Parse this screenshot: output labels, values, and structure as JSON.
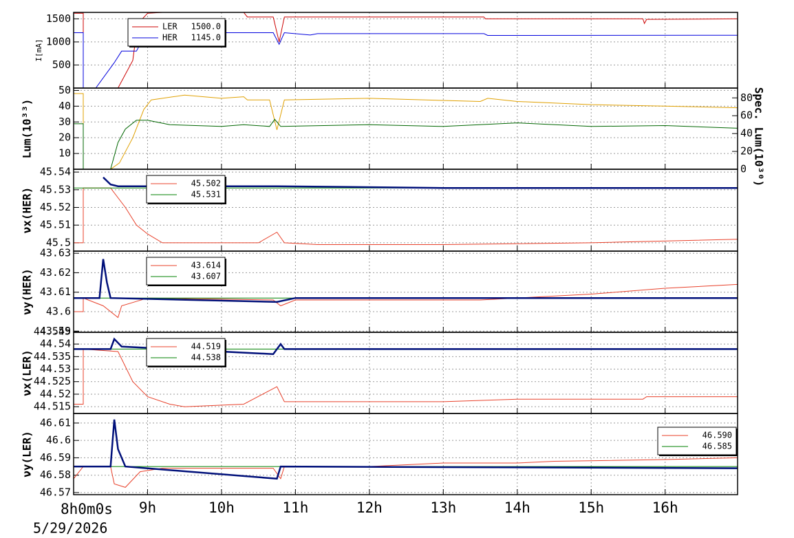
{
  "chart_data": [
    {
      "type": "line",
      "ylabel": "I[mA]",
      "xlim": [
        8,
        16.98
      ],
      "xticks": [
        9,
        10,
        11,
        12,
        13,
        14,
        15,
        16
      ],
      "ylim": [
        0,
        1640
      ],
      "yticks": [
        500,
        1000,
        1500
      ],
      "grid": true,
      "legend": "upper-left",
      "series": [
        {
          "name": "LER",
          "legend_label": "1500.0",
          "color": "#cc0000",
          "x": [
            8.0,
            8.13,
            8.13,
            8.6,
            8.8,
            8.85,
            8.93,
            9.0,
            9.2,
            10.3,
            10.35,
            10.7,
            10.78,
            10.85,
            13.55,
            13.57,
            15.7,
            15.72,
            15.75,
            16.98
          ],
          "values": [
            1620,
            1620,
            0,
            0,
            600,
            1200,
            1500,
            1620,
            1640,
            1640,
            1540,
            1540,
            1000,
            1540,
            1540,
            1500,
            1500,
            1400,
            1490,
            1500
          ]
        },
        {
          "name": "HER",
          "legend_label": "1145.0",
          "color": "#0000dd",
          "x": [
            8.0,
            8.13,
            8.13,
            8.3,
            8.55,
            8.65,
            8.85,
            8.95,
            9.1,
            10.7,
            10.78,
            10.85,
            11.2,
            11.3,
            13.55,
            13.6,
            16.98
          ],
          "values": [
            1200,
            1200,
            0,
            0,
            550,
            800,
            800,
            1100,
            1200,
            1200,
            950,
            1200,
            1150,
            1180,
            1180,
            1140,
            1145
          ]
        }
      ]
    },
    {
      "type": "line",
      "ylabel": "Lum(10³³)",
      "y2label": "Spec. Lum(10³⁰)",
      "xlim": [
        8,
        16.98
      ],
      "xticks": [
        9,
        10,
        11,
        12,
        13,
        14,
        15,
        16
      ],
      "ylim": [
        0,
        51.5
      ],
      "yticks": [
        10,
        20,
        30,
        40,
        50
      ],
      "y2lim": [
        0,
        91
      ],
      "y2ticks": [
        0,
        20,
        40,
        60,
        80
      ],
      "grid": true,
      "series": [
        {
          "color": "#e0a000",
          "x": [
            8.0,
            8.13,
            8.13,
            8.5,
            8.62,
            8.8,
            8.95,
            9.05,
            9.5,
            10.0,
            10.3,
            10.35,
            10.65,
            10.75,
            10.85,
            12.0,
            13.5,
            13.6,
            14.0,
            15.0,
            16.0,
            16.98
          ],
          "values": [
            48,
            48,
            0,
            0,
            4,
            20,
            38,
            44,
            47,
            45,
            46,
            44,
            44,
            25,
            44,
            45,
            43,
            45,
            43,
            41,
            40,
            39
          ]
        },
        {
          "color": "#006600",
          "axis": "y2",
          "x": [
            8.0,
            8.13,
            8.13,
            8.5,
            8.6,
            8.7,
            8.85,
            9.0,
            9.3,
            10.0,
            10.3,
            10.65,
            10.72,
            10.8,
            12.0,
            13.0,
            14.0,
            15.0,
            16.0,
            16.98
          ],
          "values": [
            51,
            51,
            0,
            0,
            30,
            45,
            55,
            55,
            50,
            48,
            50,
            48,
            56,
            48,
            50,
            48,
            52,
            48,
            49,
            46
          ]
        }
      ]
    },
    {
      "type": "line",
      "ylabel": "νx(HER)",
      "xlim": [
        8,
        16.98
      ],
      "xticks": [
        9,
        10,
        11,
        12,
        13,
        14,
        15,
        16
      ],
      "ylim": [
        45.4953,
        45.5416
      ],
      "yticks": [
        45.5,
        45.51,
        45.52,
        45.53,
        45.54
      ],
      "grid": true,
      "legend": "upper-left",
      "series": [
        {
          "name": "45.502",
          "color": "#e8402a",
          "x": [
            8.0,
            8.13,
            8.13,
            8.5,
            8.7,
            8.85,
            9.0,
            9.2,
            10.5,
            10.75,
            10.85,
            11.3,
            13.0,
            15.0,
            16.98
          ],
          "values": [
            45.5,
            45.5,
            45.531,
            45.531,
            45.52,
            45.51,
            45.505,
            45.5,
            45.5,
            45.506,
            45.5,
            45.499,
            45.499,
            45.5,
            45.502
          ]
        },
        {
          "name": "45.531",
          "color": "#008000",
          "x": [
            8.0,
            16.98
          ],
          "values": [
            45.531,
            45.531
          ]
        },
        {
          "color": "#00107a",
          "x": [
            8.4,
            8.5,
            8.6,
            9.0,
            10.75,
            13.0,
            16.98
          ],
          "values": [
            45.537,
            45.533,
            45.532,
            45.532,
            45.532,
            45.531,
            45.531
          ]
        }
      ]
    },
    {
      "type": "line",
      "ylabel": "νy(HER)",
      "xlim": [
        8,
        16.98
      ],
      "xticks": [
        9,
        10,
        11,
        12,
        13,
        14,
        15,
        16
      ],
      "ylim": [
        43.5894,
        43.6311
      ],
      "yticks": [
        43.59,
        43.6,
        43.61,
        43.62,
        43.63
      ],
      "grid": true,
      "legend": "upper-left",
      "series": [
        {
          "name": "43.614",
          "color": "#e8402a",
          "x": [
            8.0,
            8.13,
            8.13,
            8.4,
            8.6,
            8.65,
            9.0,
            10.7,
            10.8,
            11.0,
            13.5,
            14.0,
            15.0,
            16.0,
            16.98
          ],
          "values": [
            43.6,
            43.6,
            43.607,
            43.603,
            43.597,
            43.603,
            43.607,
            43.606,
            43.603,
            43.606,
            43.606,
            43.607,
            43.609,
            43.612,
            43.614
          ]
        },
        {
          "name": "43.607",
          "color": "#008000",
          "x": [
            8.0,
            16.98
          ],
          "values": [
            43.607,
            43.607
          ]
        },
        {
          "color": "#00107a",
          "x": [
            8.0,
            8.35,
            8.4,
            8.45,
            8.5,
            10.75,
            11.0,
            16.98
          ],
          "values": [
            43.607,
            43.607,
            43.627,
            43.615,
            43.607,
            43.605,
            43.607,
            43.607
          ]
        }
      ]
    },
    {
      "type": "line",
      "ylabel": "νx(LER)",
      "xlim": [
        8,
        16.98
      ],
      "xticks": [
        9,
        10,
        11,
        12,
        13,
        14,
        15,
        16
      ],
      "ylim": [
        44.5123,
        44.5447
      ],
      "yticks": [
        44.515,
        44.52,
        44.525,
        44.53,
        44.535,
        44.54,
        44.545
      ],
      "grid": true,
      "legend": "upper-left",
      "series": [
        {
          "name": "44.519",
          "color": "#e8402a",
          "x": [
            8.0,
            8.13,
            8.13,
            8.6,
            8.8,
            9.0,
            9.3,
            9.5,
            10.3,
            10.75,
            10.85,
            11.2,
            13.0,
            14.0,
            15.7,
            15.75,
            16.98
          ],
          "values": [
            44.516,
            44.516,
            44.538,
            44.537,
            44.525,
            44.519,
            44.516,
            44.515,
            44.516,
            44.523,
            44.517,
            44.517,
            44.517,
            44.518,
            44.518,
            44.519,
            44.519
          ]
        },
        {
          "name": "44.538",
          "color": "#008000",
          "x": [
            8.0,
            16.98
          ],
          "values": [
            44.538,
            44.538
          ]
        },
        {
          "color": "#00107a",
          "x": [
            8.0,
            8.5,
            8.55,
            8.65,
            10.7,
            10.8,
            10.85,
            16.98
          ],
          "values": [
            44.538,
            44.538,
            44.542,
            44.539,
            44.536,
            44.54,
            44.538,
            44.538
          ]
        }
      ]
    },
    {
      "type": "line",
      "ylabel": "νy(LER)",
      "xlim": [
        8,
        16.98
      ],
      "xticks": [
        {
          "value": 9,
          "label": "9h"
        },
        {
          "value": 10,
          "label": "10h"
        },
        {
          "value": 11,
          "label": "11h"
        },
        {
          "value": 12,
          "label": "12h"
        },
        {
          "value": 13,
          "label": "13h"
        },
        {
          "value": 14,
          "label": "14h"
        },
        {
          "value": 15,
          "label": "15h"
        },
        {
          "value": 16,
          "label": "16h"
        }
      ],
      "x_origin_label": "8h0m0s",
      "date_label": "5/29/2026",
      "ylim": [
        46.5688,
        46.6155
      ],
      "yticks": [
        46.57,
        46.58,
        46.59,
        46.6,
        46.61
      ],
      "grid": true,
      "legend": "upper-right",
      "series": [
        {
          "name": "46.590",
          "color": "#e8402a",
          "x": [
            8.0,
            8.13,
            8.5,
            8.55,
            8.7,
            8.9,
            9.2,
            10.7,
            10.8,
            10.85,
            12.0,
            13.0,
            14.0,
            14.5,
            16.0,
            16.98
          ],
          "values": [
            46.578,
            46.585,
            46.585,
            46.575,
            46.573,
            46.582,
            46.584,
            46.584,
            46.578,
            46.585,
            46.585,
            46.587,
            46.587,
            46.588,
            46.589,
            46.59
          ]
        },
        {
          "name": "46.585",
          "color": "#008000",
          "x": [
            8.0,
            16.98
          ],
          "values": [
            46.585,
            46.585
          ]
        },
        {
          "color": "#00107a",
          "x": [
            8.0,
            8.5,
            8.55,
            8.6,
            8.7,
            10.75,
            10.8,
            16.98
          ],
          "values": [
            46.585,
            46.585,
            46.612,
            46.595,
            46.585,
            46.578,
            46.585,
            46.584
          ]
        }
      ]
    }
  ]
}
